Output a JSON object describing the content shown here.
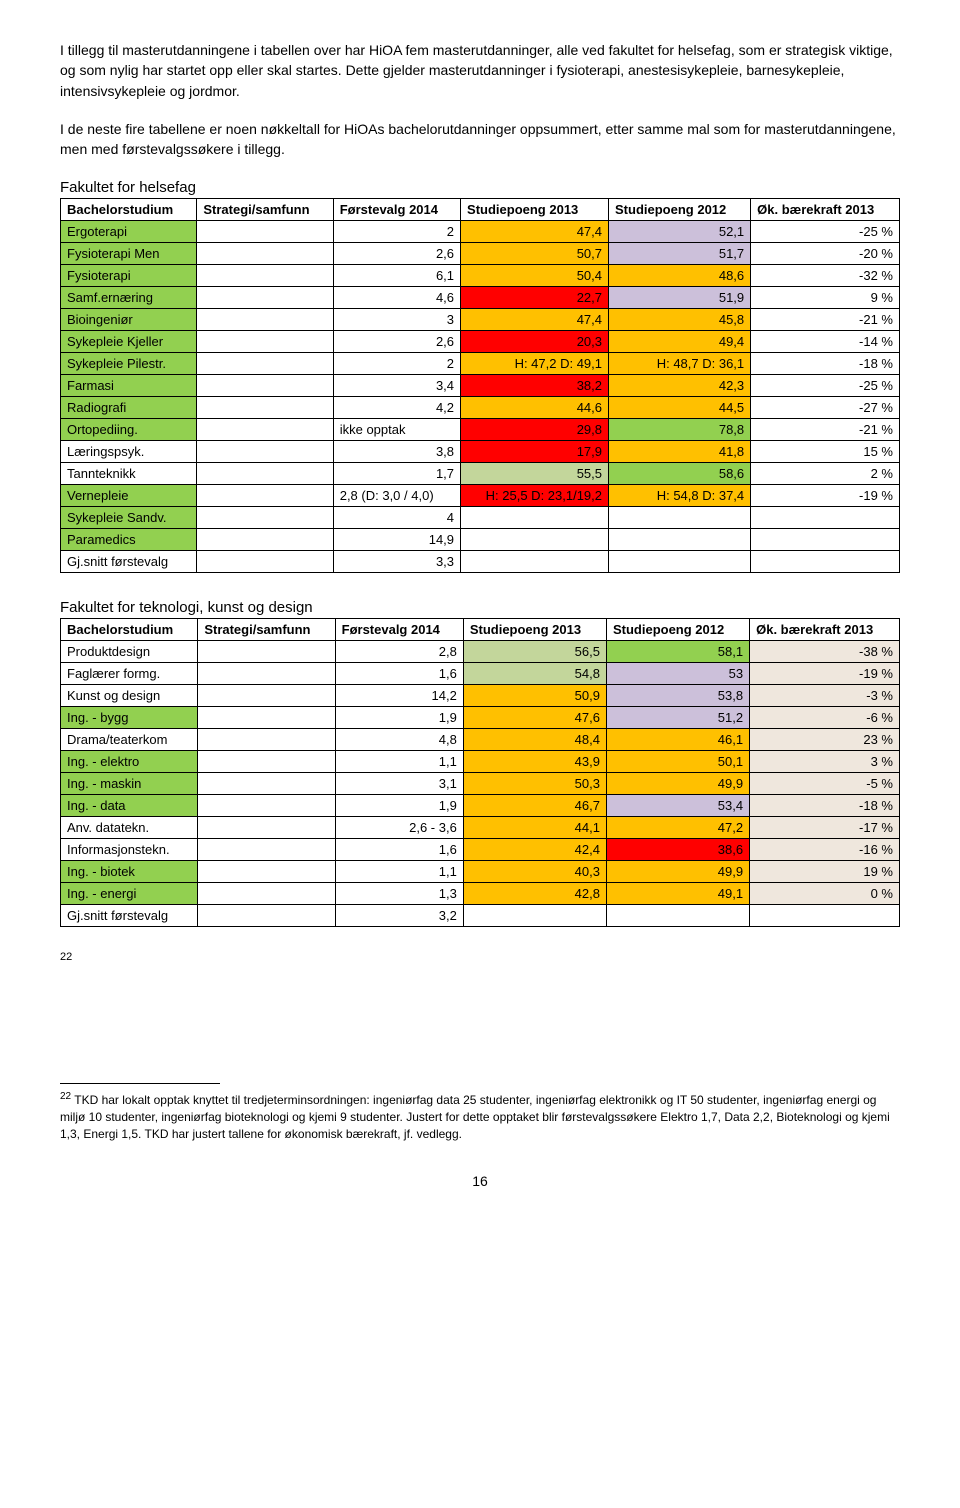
{
  "intro": {
    "p1": "I tillegg til masterutdanningene i tabellen over har HiOA fem masterutdanninger, alle ved fakultet for helsefag, som er strategisk viktige, og som nylig har startet opp eller skal startes. Dette gjelder masterutdanninger i fysioterapi, anestesisykepleie, barnesykepleie, intensivsykepleie og jordmor.",
    "p2": "I de neste fire tabellene er noen nøkkeltall for HiOAs bachelorutdanninger oppsummert, etter samme mal som for masterutdanningene, men med førstevalgssøkere i tillegg."
  },
  "colors": {
    "green": "#92d050",
    "orange": "#ffc000",
    "red": "#ff0000",
    "tan": "#efe7dd",
    "olive": "#c3d69b",
    "lilac": "#ccc0da"
  },
  "table1": {
    "title": "Fakultet for helsefag",
    "headers": [
      "Bachelorstudium",
      "Strategi/samfunn",
      "Førstevalg 2014",
      "Studiepoeng 2013",
      "Studiepoeng 2012",
      "Øk. bærekraft 2013"
    ],
    "rows": [
      {
        "c0": "Ergoterapi",
        "c0bg": "green",
        "c1": "",
        "c2": "2",
        "c3": "47,4",
        "c3bg": "orange",
        "c4": "52,1",
        "c4bg": "lilac",
        "c5": "-25 %"
      },
      {
        "c0": "Fysioterapi Men",
        "c0bg": "green",
        "c1": "",
        "c2": "2,6",
        "c3": "50,7",
        "c3bg": "orange",
        "c4": "51,7",
        "c4bg": "lilac",
        "c5": "-20 %"
      },
      {
        "c0": "Fysioterapi",
        "c0bg": "green",
        "c1": "",
        "c2": "6,1",
        "c3": "50,4",
        "c3bg": "orange",
        "c4": "48,6",
        "c4bg": "orange",
        "c5": "-32 %"
      },
      {
        "c0": "Samf.ernæring",
        "c0bg": "green",
        "c1": "",
        "c2": "4,6",
        "c3": "22,7",
        "c3bg": "red",
        "c4": "51,9",
        "c4bg": "lilac",
        "c5": "9 %"
      },
      {
        "c0": "Bioingeniør",
        "c0bg": "green",
        "c1": "",
        "c2": "3",
        "c3": "47,4",
        "c3bg": "orange",
        "c4": "45,8",
        "c4bg": "orange",
        "c5": "-21 %"
      },
      {
        "c0": "Sykepleie Kjeller",
        "c0bg": "green",
        "c1": "",
        "c2": "2,6",
        "c3": "20,3",
        "c3bg": "red",
        "c4": "49,4",
        "c4bg": "orange",
        "c5": "-14 %"
      },
      {
        "c0": "Sykepleie Pilestr.",
        "c0bg": "green",
        "c1": "",
        "c2": "2",
        "c3": "H: 47,2 D: 49,1",
        "c3bg": "orange",
        "c4": "H: 48,7 D: 36,1",
        "c4bg": "orange",
        "c5": "-18 %"
      },
      {
        "c0": "Farmasi",
        "c0bg": "green",
        "c1": "",
        "c2": "3,4",
        "c3": "38,2",
        "c3bg": "red",
        "c4": "42,3",
        "c4bg": "orange",
        "c5": "-25 %"
      },
      {
        "c0": "Radiografi",
        "c0bg": "green",
        "c1": "",
        "c2": "4,2",
        "c3": "44,6",
        "c3bg": "orange",
        "c4": "44,5",
        "c4bg": "orange",
        "c5": "-27 %"
      },
      {
        "c0": "Ortopediing.",
        "c0bg": "green",
        "c1": "",
        "c2": "ikke opptak",
        "c2align": "left",
        "c3": "29,8",
        "c3bg": "red",
        "c4": "78,8",
        "c4bg": "green",
        "c5": "-21 %"
      },
      {
        "c0": "Læringspsyk.",
        "c0bg": "",
        "c1": "",
        "c2": "3,8",
        "c3": "17,9",
        "c3bg": "red",
        "c4": "41,8",
        "c4bg": "orange",
        "c5": "15 %"
      },
      {
        "c0": "Tannteknikk",
        "c0bg": "",
        "c1": "",
        "c2": "1,7",
        "c3": "55,5",
        "c3bg": "olive",
        "c4": "58,6",
        "c4bg": "green",
        "c5": "2 %"
      },
      {
        "c0": "Vernepleie",
        "c0bg": "green",
        "c1": "",
        "c2": "2,8 (D: 3,0 / 4,0)",
        "c2align": "left",
        "c3": "H: 25,5 D: 23,1/19,2",
        "c3bg": "red",
        "c4": "H: 54,8 D: 37,4",
        "c4bg": "orange",
        "c5": "-19 %"
      },
      {
        "c0": "Sykepleie Sandv.",
        "c0bg": "green",
        "c1": "",
        "c2": "4",
        "c3": "",
        "c4": "",
        "c5": ""
      },
      {
        "c0": "Paramedics",
        "c0bg": "green",
        "c1": "",
        "c2": "14,9",
        "c3": "",
        "c4": "",
        "c5": ""
      },
      {
        "c0": "Gj.snitt førstevalg",
        "c0bg": "",
        "c1": "",
        "c2": "3,3",
        "c3": "",
        "c4": "",
        "c5": ""
      }
    ]
  },
  "table2": {
    "title": "Fakultet for teknologi, kunst og design",
    "headers": [
      "Bachelorstudium",
      "Strategi/samfunn",
      "Førstevalg 2014",
      "Studiepoeng 2013",
      "Studiepoeng 2012",
      "Øk. bærekraft 2013"
    ],
    "rows": [
      {
        "c0": "Produktdesign",
        "c0bg": "",
        "c1": "",
        "c2": "2,8",
        "c3": "56,5",
        "c3bg": "olive",
        "c4": "58,1",
        "c4bg": "green",
        "c5": "-38 %",
        "c5bg": "tan"
      },
      {
        "c0": "Faglærer formg.",
        "c0bg": "",
        "c1": "",
        "c2": "1,6",
        "c3": "54,8",
        "c3bg": "olive",
        "c4": "53",
        "c4bg": "lilac",
        "c5": "-19 %",
        "c5bg": "tan"
      },
      {
        "c0": "Kunst og design",
        "c0bg": "",
        "c1": "",
        "c2": "14,2",
        "c3": "50,9",
        "c3bg": "orange",
        "c4": "53,8",
        "c4bg": "lilac",
        "c5": "-3 %",
        "c5bg": "tan"
      },
      {
        "c0": "Ing. - bygg",
        "c0bg": "green",
        "c1": "",
        "c2": "1,9",
        "c3": "47,6",
        "c3bg": "orange",
        "c4": "51,2",
        "c4bg": "lilac",
        "c5": "-6 %",
        "c5bg": "tan"
      },
      {
        "c0": "Drama/teaterkom",
        "c0bg": "",
        "c1": "",
        "c2": "4,8",
        "c3": "48,4",
        "c3bg": "orange",
        "c4": "46,1",
        "c4bg": "orange",
        "c5": "23 %",
        "c5bg": "tan"
      },
      {
        "c0": "Ing. - elektro",
        "c0bg": "green",
        "c1": "",
        "c2": "1,1",
        "c3": "43,9",
        "c3bg": "orange",
        "c4": "50,1",
        "c4bg": "orange",
        "c5": "3 %",
        "c5bg": "tan"
      },
      {
        "c0": "Ing. - maskin",
        "c0bg": "green",
        "c1": "",
        "c2": "3,1",
        "c3": "50,3",
        "c3bg": "orange",
        "c4": "49,9",
        "c4bg": "orange",
        "c5": "-5 %",
        "c5bg": "tan"
      },
      {
        "c0": "Ing. - data",
        "c0bg": "green",
        "c1": "",
        "c2": "1,9",
        "c3": "46,7",
        "c3bg": "orange",
        "c4": "53,4",
        "c4bg": "lilac",
        "c5": "-18 %",
        "c5bg": "tan"
      },
      {
        "c0": "Anv. datatekn.",
        "c0bg": "",
        "c1": "",
        "c2": "2,6 - 3,6",
        "c3": "44,1",
        "c3bg": "orange",
        "c4": "47,2",
        "c4bg": "orange",
        "c5": "-17 %",
        "c5bg": "tan"
      },
      {
        "c0": "Informasjonstekn.",
        "c0bg": "",
        "c1": "",
        "c2": "1,6",
        "c3": "42,4",
        "c3bg": "orange",
        "c4": "38,6",
        "c4bg": "red",
        "c5": "-16 %",
        "c5bg": "tan"
      },
      {
        "c0": "Ing. - biotek",
        "c0bg": "green",
        "c1": "",
        "c2": "1,1",
        "c3": "40,3",
        "c3bg": "orange",
        "c4": "49,9",
        "c4bg": "orange",
        "c5": "19 %",
        "c5bg": "tan"
      },
      {
        "c0": "Ing. - energi",
        "c0bg": "green",
        "c1": "",
        "c2": "1,3",
        "c3": "42,8",
        "c3bg": "orange",
        "c4": "49,1",
        "c4bg": "orange",
        "c5": "0 %",
        "c5bg": "tan"
      },
      {
        "c0": "Gj.snitt førstevalg",
        "c0bg": "",
        "c1": "",
        "c2": "3,2",
        "c3": "",
        "c4": "",
        "c5": ""
      }
    ],
    "footnote_ref": "22"
  },
  "footnote": {
    "num": "22",
    "text": " TKD har lokalt opptak knyttet til tredjeterminsordningen: ingeniørfag data 25 studenter, ingeniørfag elektronikk og IT 50 studenter, ingeniørfag energi og miljø 10 studenter, ingeniørfag bioteknologi og kjemi 9 studenter. Justert for dette opptaket blir førstevalgssøkere Elektro 1,7, Data 2,2, Bioteknologi og kjemi 1,3, Energi 1,5. TKD har justert tallene for økonomisk bærekraft, jf. vedlegg."
  },
  "page_number": "16"
}
